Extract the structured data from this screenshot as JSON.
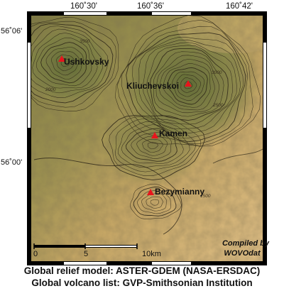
{
  "map": {
    "longitude_labels": [
      "160˚30'",
      "160˚36'",
      "160˚42'"
    ],
    "latitude_labels": [
      "56˚06'",
      "56˚00'"
    ],
    "volcanoes": [
      {
        "name": "Ushkovsky"
      },
      {
        "name": "Kliuchevskoi"
      },
      {
        "name": "Kamen"
      },
      {
        "name": "Bezymianny"
      }
    ],
    "contour_labels": [
      "3500",
      "3000",
      "2500",
      "2000",
      "1500"
    ],
    "scale_bar": {
      "ticks": [
        "0",
        "5",
        "10km"
      ]
    },
    "credit": [
      "Compiled by",
      "WOVOdat"
    ],
    "colors": {
      "volcano_marker": "#e8141c",
      "frame": "#000000",
      "relief_high": "#6f7a3a",
      "relief_low": "#d9b57a"
    }
  },
  "captions": {
    "relief_model": "Global relief model: ASTER-GDEM (NASA-ERSDAC)",
    "volcano_list": "Global volcano list: GVP-Smithsonian Institution"
  }
}
